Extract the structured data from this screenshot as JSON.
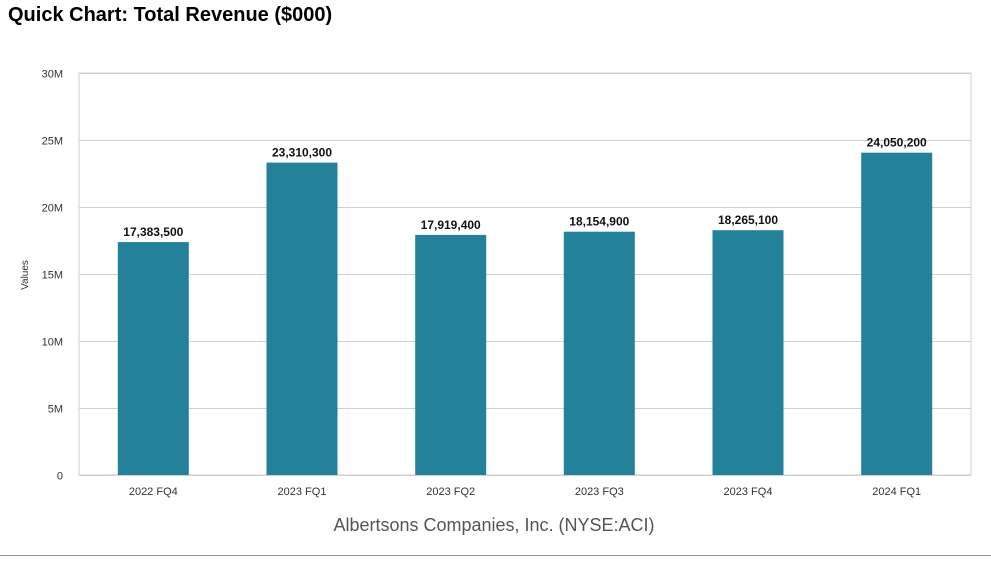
{
  "chart_data": {
    "type": "bar",
    "title": "Quick Chart: Total Revenue ($000)",
    "subtitle": "Albertsons Companies, Inc. (NYSE:ACI)",
    "ylabel": "Values",
    "xlabel": "",
    "categories": [
      "2022 FQ4",
      "2023 FQ1",
      "2023 FQ2",
      "2023 FQ3",
      "2023 FQ4",
      "2024 FQ1"
    ],
    "values": [
      17383500,
      23310300,
      17919400,
      18154900,
      18265100,
      24050200
    ],
    "data_labels": [
      "17,383,500",
      "23,310,300",
      "17,919,400",
      "18,154,900",
      "18,265,100",
      "24,050,200"
    ],
    "ylim": [
      0,
      30000000
    ],
    "yticks": [
      0,
      5000000,
      10000000,
      15000000,
      20000000,
      25000000,
      30000000
    ],
    "ytick_labels": [
      "0",
      "5M",
      "10M",
      "15M",
      "20M",
      "25M",
      "30M"
    ],
    "grid": true,
    "legend": "none",
    "colors": {
      "bar": "#23819a",
      "grid": "#cfcfcf",
      "axis_text": "#333333",
      "label_text": "#111111"
    }
  }
}
